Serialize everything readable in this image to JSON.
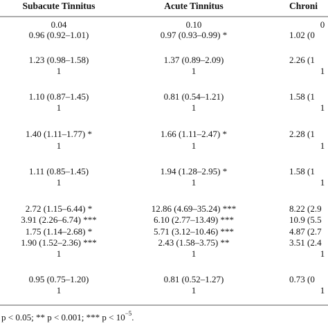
{
  "table": {
    "header": [
      "Subacute Tinnitus",
      "Acute Tinnitus",
      "Chroni"
    ],
    "rows": [
      [
        "0.04",
        "0.10",
        "0"
      ],
      [
        "0.96 (0.92–1.01)",
        "0.97 (0.93–0.99) *",
        "1.02 (0"
      ],
      [
        "1.23 (0.98–1.58)",
        "1.37 (0.89–2.09)",
        "2.26 (1"
      ],
      [
        "1",
        "1",
        "1"
      ],
      [
        "1.10 (0.87–1.45)",
        "0.81 (0.54–1.21)",
        "1.58 (1"
      ],
      [
        "1",
        "1",
        "1"
      ],
      [
        "1.40 (1.11–1.77) *",
        "1.66 (1.11–2.47) *",
        "2.28 (1"
      ],
      [
        "1",
        "1",
        "1"
      ],
      [
        "1.11 (0.85–1.45)",
        "1.94 (1.28–2.95) *",
        "1.58 (1"
      ],
      [
        "1",
        "1",
        "1"
      ],
      [
        "2.72 (1.15–6.44) *",
        "12.86 (4.69–35.24) ***",
        "8.22 (2.9"
      ],
      [
        "3.91 (2.26–6.74) ***",
        "6.10 (2.77–13.49) ***",
        "10.9 (5.5"
      ],
      [
        "1.75 (1.14–2.68) *",
        "5.71 (3.12–10.46) ***",
        "4.87 (2.7"
      ],
      [
        "1.90 (1.52–2.36) ***",
        "2.43 (1.58–3.75) **",
        "3.51 (2.4"
      ],
      [
        "1",
        "1",
        "1"
      ],
      [
        "0.95 (0.75–1.20)",
        "0.81 (0.52–1.27)",
        "0.73 (0"
      ],
      [
        "1",
        "1",
        "1"
      ]
    ]
  },
  "footnote": {
    "text": "p < 0.05; ** p < 0.001; *** p < 10",
    "sup": "−5",
    "end": "."
  }
}
